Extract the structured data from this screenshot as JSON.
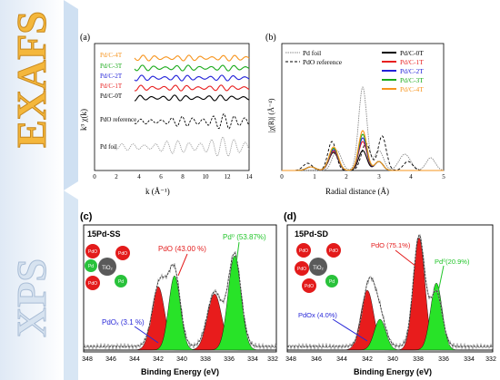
{
  "banners": {
    "top": "EXAFS",
    "bottom": "XPS"
  },
  "panel_a": {
    "letter": "(a)",
    "ylabel": "k³ χ(k)",
    "xlabel": "k (Å⁻¹)",
    "xticks": [
      "0",
      "2",
      "4",
      "6",
      "8",
      "10",
      "12",
      "14"
    ],
    "labels": [
      "Pd/C-4T",
      "Pd/C-3T",
      "Pd/C-2T",
      "Pd/C-1T",
      "Pd/C-0T",
      "PdO reference",
      "Pd foil"
    ],
    "colors": [
      "#f7941d",
      "#1aaa1a",
      "#2121d8",
      "#e81f1f",
      "#000000",
      "#000000",
      "#9a9a9a"
    ]
  },
  "panel_b": {
    "letter": "(b)",
    "ylabel": "|χ(R)| (Å⁻⁴)",
    "xlabel": "Radial distance (Å)",
    "xticks": [
      "0",
      "1",
      "2",
      "3",
      "4",
      "5"
    ],
    "legend_left": [
      "Pd foil",
      "PdO reference"
    ],
    "legend_right": [
      "Pd/C-0T",
      "Pd/C-1T",
      "Pd/C-2T",
      "Pd/C-3T",
      "Pd/C-4T"
    ],
    "colors": [
      "#000000",
      "#e81f1f",
      "#2121d8",
      "#1aaa1a",
      "#f7941d"
    ]
  },
  "panel_c": {
    "letter": "(c)",
    "sample": "15Pd-SS",
    "peak_pdo": "PdO (43.00 %)",
    "peak_pd0": "Pd⁰ (53.87%)",
    "peak_pdx": "PdOₓ (3.1 %)",
    "xlabel": "Binding Energy (eV)",
    "xticks": [
      "348",
      "346",
      "344",
      "342",
      "340",
      "338",
      "336",
      "334",
      "332"
    ],
    "model": {
      "center": "TiO₂",
      "balls": [
        "PdO",
        "PdO",
        "PdO",
        "Pd",
        "Pd"
      ]
    }
  },
  "panel_d": {
    "letter": "(d)",
    "sample": "15Pd-SD",
    "peak_pdo": "PdO (75.1%)",
    "peak_pd0": "Pd⁰(20.9%)",
    "peak_pdx": "PdOx (4.0%)",
    "xlabel": "Binding Energy (eV)",
    "xticks": [
      "348",
      "346",
      "344",
      "342",
      "340",
      "338",
      "336",
      "334",
      "332"
    ],
    "model": {
      "center": "TiO₂",
      "balls": [
        "PdO",
        "PdO",
        "PdO",
        "PdO",
        "Pd"
      ]
    }
  }
}
